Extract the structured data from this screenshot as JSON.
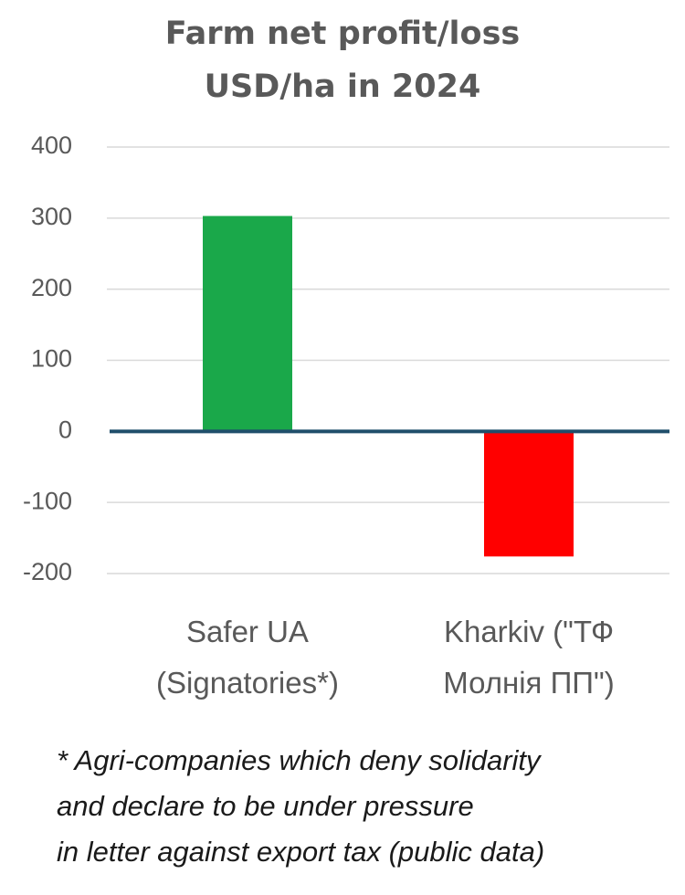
{
  "chart_data": {
    "type": "bar",
    "title_lines": [
      "Farm net profit/loss",
      "USD/ha in 2024"
    ],
    "categories": [
      [
        "Safer UA",
        "(Signatories*)"
      ],
      [
        "Kharkiv (\"ТФ",
        "Молнія ПП\")"
      ]
    ],
    "values": [
      303,
      -176
    ],
    "colors": [
      "#1aa84a",
      "#ff0000"
    ],
    "yticks": [
      400,
      300,
      200,
      100,
      0,
      -100,
      -200
    ],
    "ylim": [
      -200,
      400
    ],
    "grid": true,
    "zero_line_color": "#1f4e6b",
    "xlabel": "",
    "ylabel": ""
  },
  "footnote": {
    "lines": [
      "* Agri-companies which deny solidarity",
      "and declare to be under pressure",
      "in letter against export tax (public data)"
    ]
  }
}
